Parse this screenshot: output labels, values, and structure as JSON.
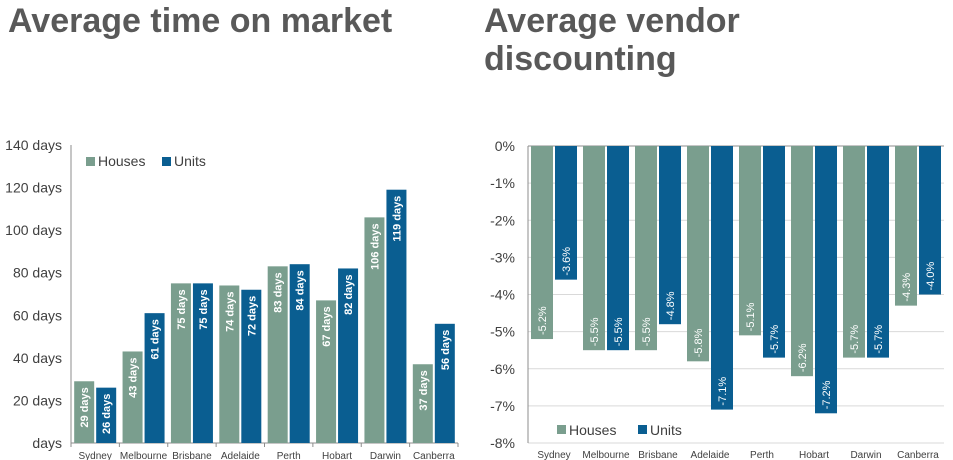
{
  "chart_data": [
    {
      "type": "bar",
      "title": "Average time on market",
      "categories": [
        "Sydney",
        "Melbourne",
        "Brisbane",
        "Adelaide",
        "Perth",
        "Hobart",
        "Darwin",
        "Canberra"
      ],
      "series": [
        {
          "name": "Houses",
          "color": "#7a9e8e",
          "values": [
            29,
            43,
            75,
            74,
            83,
            67,
            106,
            37
          ],
          "labels": [
            "29 days",
            "43 days",
            "75 days",
            "74 days",
            "83 days",
            "67 days",
            "106 days",
            "37 days"
          ]
        },
        {
          "name": "Units",
          "color": "#0a5e91",
          "values": [
            26,
            61,
            75,
            72,
            84,
            82,
            119,
            56
          ],
          "labels": [
            "26 days",
            "61 days",
            "75 days",
            "72 days",
            "84 days",
            "82 days",
            "119 days",
            "56 days"
          ]
        }
      ],
      "y_ticks": [
        0,
        20,
        40,
        60,
        80,
        100,
        120,
        140
      ],
      "y_tick_labels": [
        "days",
        "20 days",
        "40 days",
        "60 days",
        "80 days",
        "100 days",
        "120 days",
        "140 days"
      ],
      "ylim": [
        0,
        140
      ],
      "grid": false,
      "legend": "top-left"
    },
    {
      "type": "bar",
      "title": "Average vendor discounting",
      "categories": [
        "Sydney",
        "Melbourne",
        "Brisbane",
        "Adelaide",
        "Perth",
        "Hobart",
        "Darwin",
        "Canberra"
      ],
      "series": [
        {
          "name": "Houses",
          "color": "#7a9e8e",
          "values": [
            -5.2,
            -5.5,
            -5.5,
            -5.8,
            -5.1,
            -6.2,
            -5.7,
            -4.3
          ],
          "labels": [
            "-5.2%",
            "-5.5%",
            "-5.5%",
            "-5.8%",
            "-5.1%",
            "-6.2%",
            "-5.7%",
            "-4.3%"
          ]
        },
        {
          "name": "Units",
          "color": "#0a5e91",
          "values": [
            -3.6,
            -5.5,
            -4.8,
            -7.1,
            -5.7,
            -7.2,
            -5.7,
            -4.0
          ],
          "labels": [
            "-3.6%",
            "-5.5%",
            "-4.8%",
            "-7.1%",
            "-5.7%",
            "-7.2%",
            "-5.7%",
            "-4.0%"
          ]
        }
      ],
      "y_ticks": [
        0,
        -1,
        -2,
        -3,
        -4,
        -5,
        -6,
        -7,
        -8
      ],
      "y_tick_labels": [
        "0%",
        "-1%",
        "-2%",
        "-3%",
        "-4%",
        "-5%",
        "-6%",
        "-7%",
        "-8%"
      ],
      "ylim": [
        -8,
        0
      ],
      "grid": true,
      "legend": "bottom-left"
    }
  ]
}
